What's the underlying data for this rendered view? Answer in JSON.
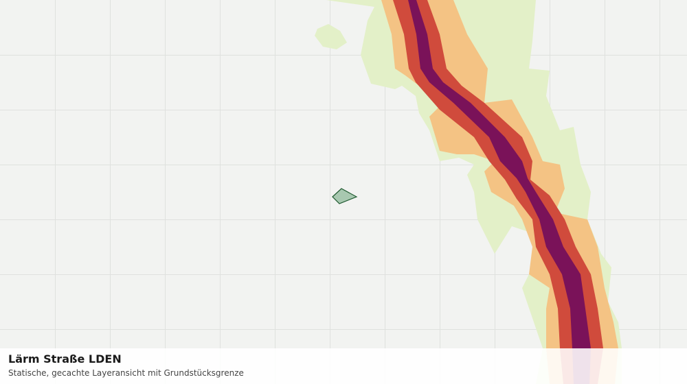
{
  "legend_panel": {
    "title": "Lärm Straße LDEN",
    "subtitle": "Statische, gecachte Layeransicht mit Grundstücksgrenze"
  }
}
